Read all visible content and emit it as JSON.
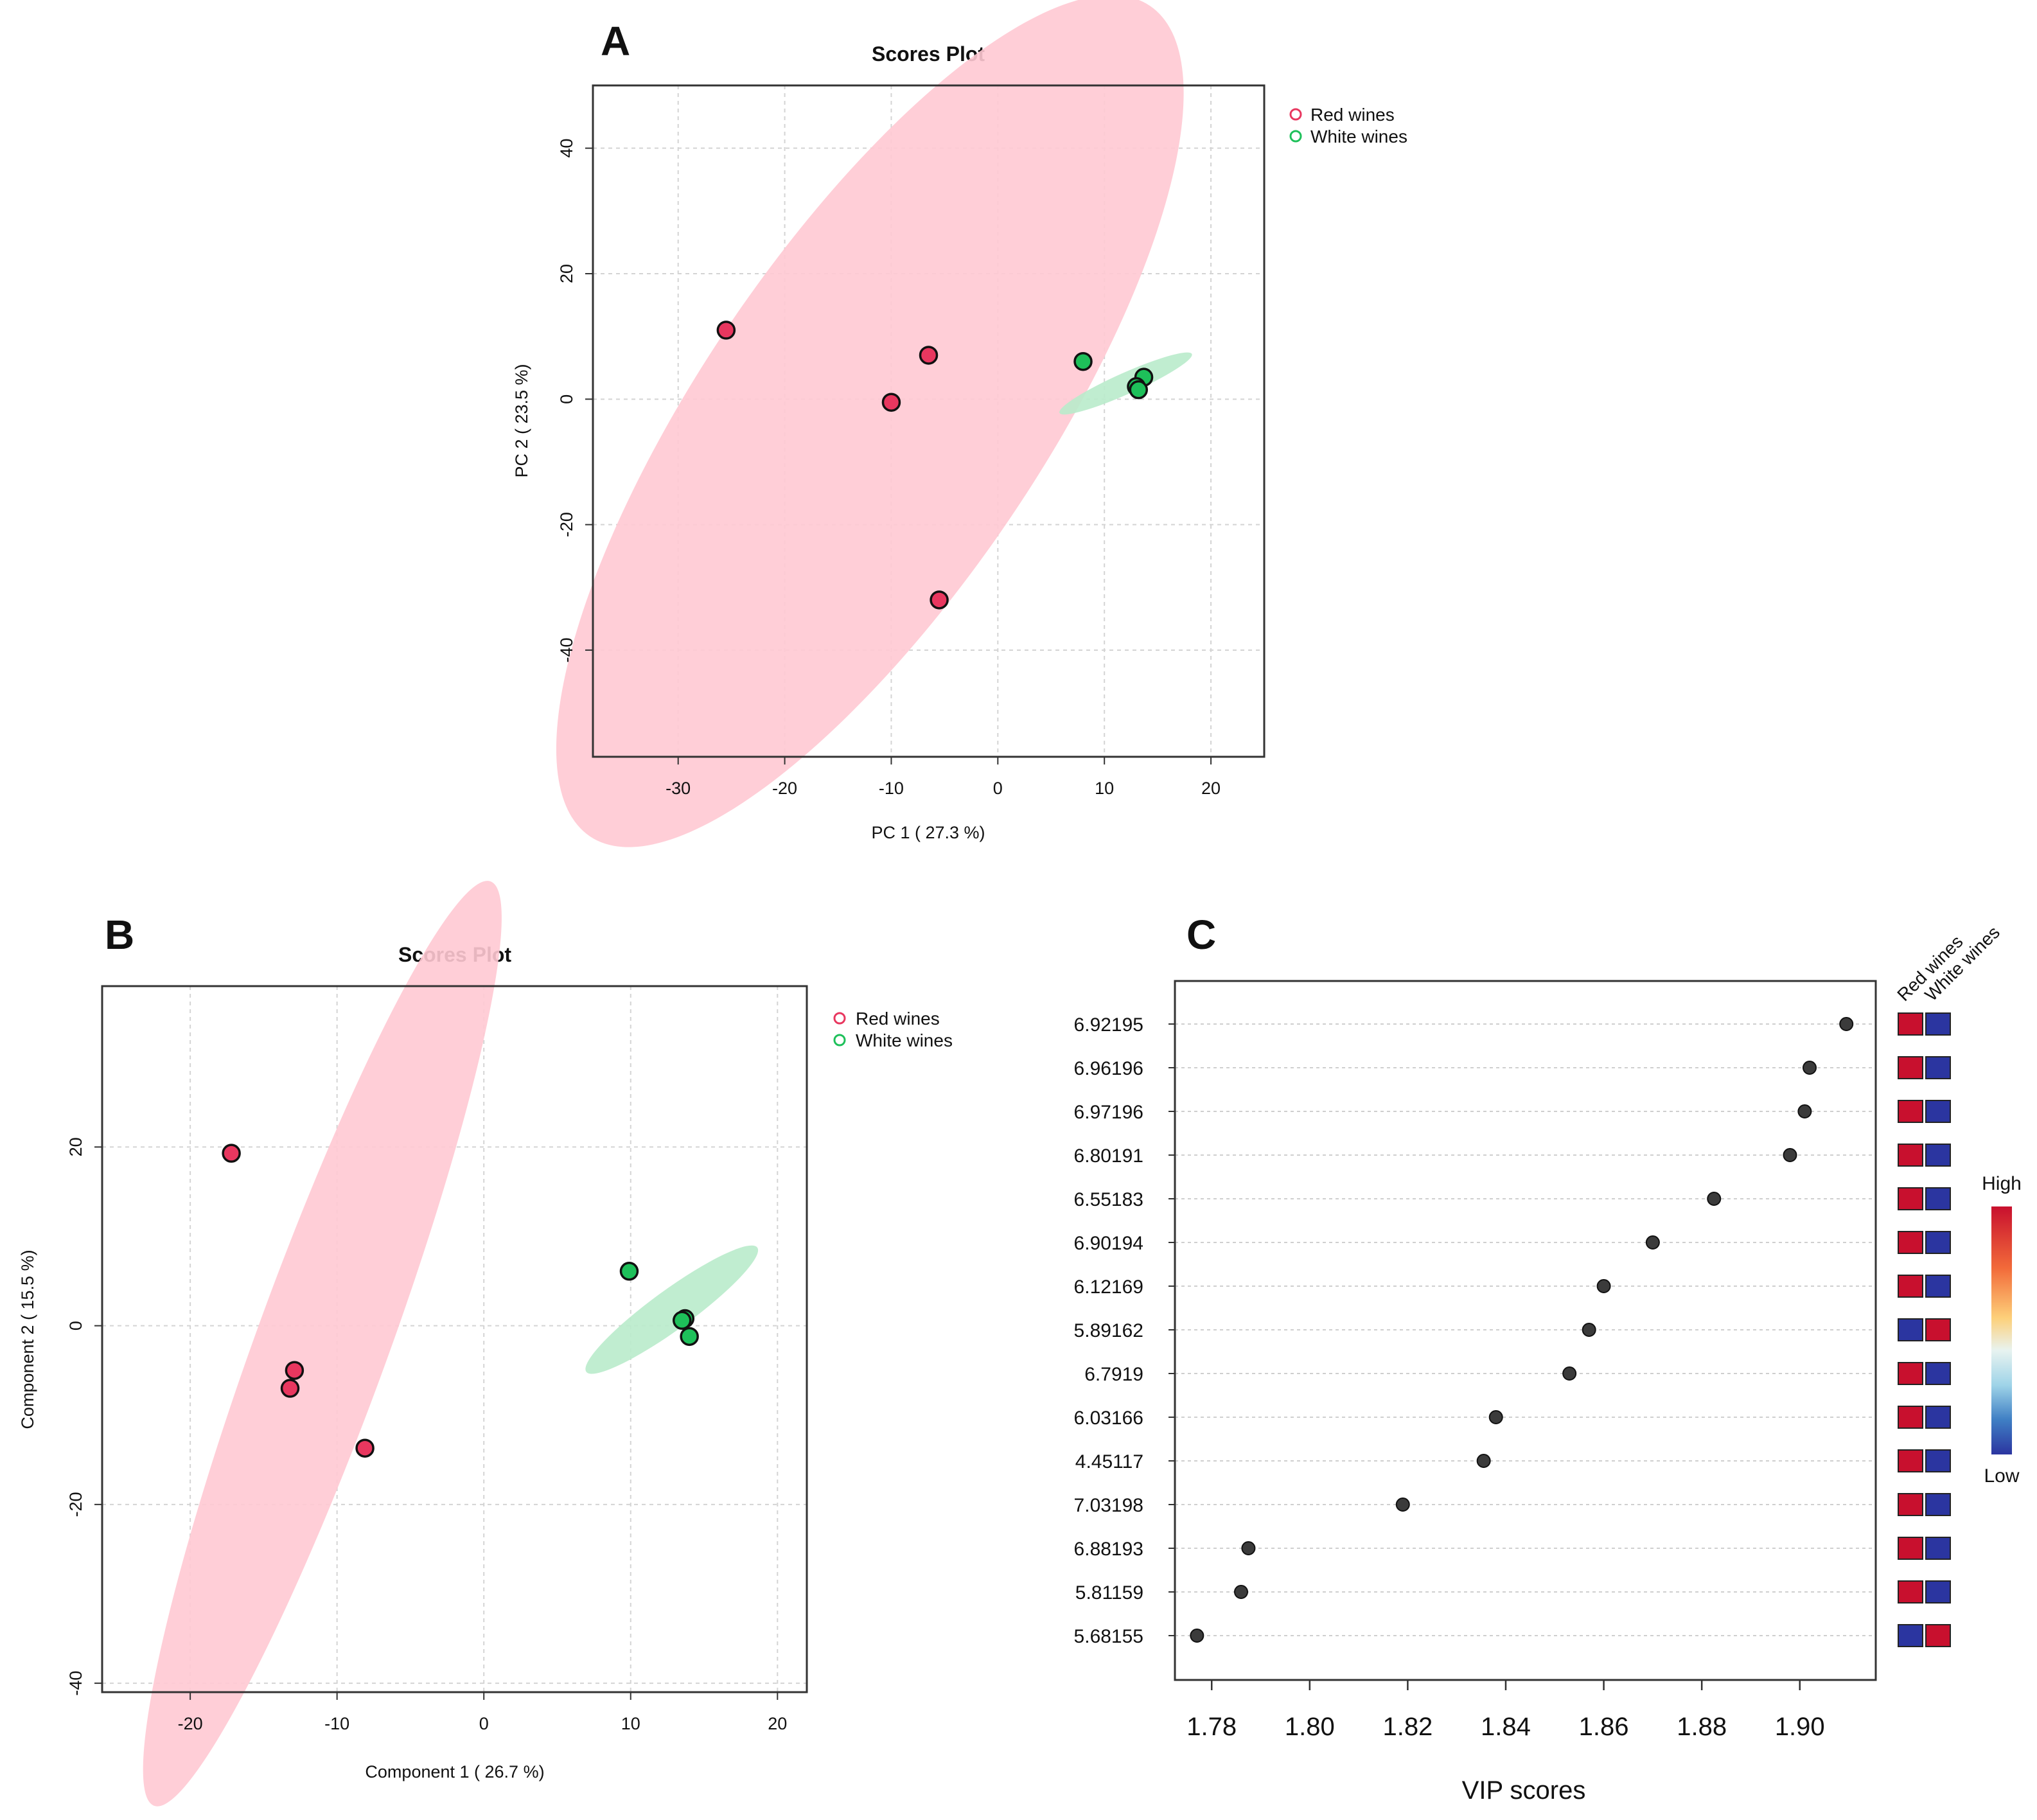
{
  "colors": {
    "red": "#e8375f",
    "green": "#1ec05a",
    "red_ellipse": "#ffc9d3",
    "green_ellipse": "#b9ebcb",
    "high": "#c8102e",
    "low": "#2b35a0",
    "dot": "#3b3b3b"
  },
  "chart_data": [
    {
      "panel": "A",
      "type": "scatter",
      "title": "Scores Plot",
      "xlabel": "PC 1 ( 27.3 %)",
      "ylabel": "PC 2 ( 23.5 %)",
      "xlim": [
        -38,
        25
      ],
      "ylim": [
        -57,
        50
      ],
      "xticks": [
        -30,
        -20,
        -10,
        0,
        10,
        20
      ],
      "yticks": [
        -40,
        -20,
        0,
        20,
        40
      ],
      "grid": true,
      "legend_position": "right",
      "legend": [
        "Red wines",
        "White wines"
      ],
      "series": [
        {
          "name": "Red wines",
          "points": [
            {
              "x": -25.5,
              "y": 11
            },
            {
              "x": -6.5,
              "y": 7
            },
            {
              "x": -10.0,
              "y": -0.5
            },
            {
              "x": -5.5,
              "y": -32
            }
          ],
          "ellipse": {
            "cx": -12,
            "cy": -3.5,
            "rx": 47,
            "ry": 16,
            "angle_deg": 56
          }
        },
        {
          "name": "White wines",
          "points": [
            {
              "x": 8.0,
              "y": 6
            },
            {
              "x": 13.7,
              "y": 3.5
            },
            {
              "x": 13.0,
              "y": 2.0
            },
            {
              "x": 13.2,
              "y": 1.5
            }
          ],
          "ellipse": {
            "cx": 12,
            "cy": 2.5,
            "rx": 6.8,
            "ry": 1.0,
            "angle_deg": 24
          }
        }
      ]
    },
    {
      "panel": "B",
      "type": "scatter",
      "title": "Scores Plot",
      "xlabel": "Component 1 ( 26.7 %)",
      "ylabel": "Component 2 ( 15.5 %)",
      "xlim": [
        -26,
        22
      ],
      "ylim": [
        -41,
        38
      ],
      "xticks": [
        -20,
        -10,
        0,
        10,
        20
      ],
      "yticks": [
        -40,
        -20,
        0,
        20
      ],
      "grid": true,
      "legend_position": "right",
      "legend": [
        "Red wines",
        "White wines"
      ],
      "series": [
        {
          "name": "Red wines",
          "points": [
            {
              "x": -17.2,
              "y": 19.3
            },
            {
              "x": -12.9,
              "y": -5.0
            },
            {
              "x": -13.2,
              "y": -7.0
            },
            {
              "x": -8.1,
              "y": -13.7
            }
          ],
          "ellipse": {
            "cx": -11,
            "cy": -2,
            "rx": 33.5,
            "ry": 4.5,
            "angle_deg": 70
          }
        },
        {
          "name": "White wines",
          "points": [
            {
              "x": 9.9,
              "y": 6.1
            },
            {
              "x": 13.7,
              "y": 0.8
            },
            {
              "x": 13.5,
              "y": 0.6
            },
            {
              "x": 14.0,
              "y": -1.2
            }
          ],
          "ellipse": {
            "cx": 12.8,
            "cy": 1.8,
            "rx": 7.2,
            "ry": 1.35,
            "angle_deg": 36
          }
        }
      ]
    },
    {
      "panel": "C",
      "type": "scatter",
      "xlabel": "VIP scores",
      "xlim": [
        1.7725,
        1.9155
      ],
      "xticks": [
        "1.78",
        "1.80",
        "1.82",
        "1.84",
        "1.86",
        "1.88",
        "1.90"
      ],
      "grid": true,
      "features": [
        "6.92195",
        "6.96196",
        "6.97196",
        "6.80191",
        "6.55183",
        "6.90194",
        "6.12169",
        "5.89162",
        "6.7919",
        "6.03166",
        "4.45117",
        "7.03198",
        "6.88193",
        "5.81159",
        "5.68155"
      ],
      "vip": [
        1.9095,
        1.902,
        1.901,
        1.898,
        1.8825,
        1.87,
        1.86,
        1.857,
        1.853,
        1.838,
        1.8355,
        1.819,
        1.7875,
        1.786,
        1.777
      ],
      "heatmap_columns": [
        "Red wines",
        "White wines"
      ],
      "heatmap": [
        [
          "high",
          "low"
        ],
        [
          "high",
          "low"
        ],
        [
          "high",
          "low"
        ],
        [
          "high",
          "low"
        ],
        [
          "high",
          "low"
        ],
        [
          "high",
          "low"
        ],
        [
          "high",
          "low"
        ],
        [
          "low",
          "high"
        ],
        [
          "high",
          "low"
        ],
        [
          "high",
          "low"
        ],
        [
          "high",
          "low"
        ],
        [
          "high",
          "low"
        ],
        [
          "high",
          "low"
        ],
        [
          "high",
          "low"
        ],
        [
          "low",
          "high"
        ]
      ],
      "colorbar": {
        "high_label": "High",
        "low_label": "Low"
      }
    }
  ],
  "panels": {
    "A": {
      "letter": "A"
    },
    "B": {
      "letter": "B"
    },
    "C": {
      "letter": "C"
    }
  }
}
